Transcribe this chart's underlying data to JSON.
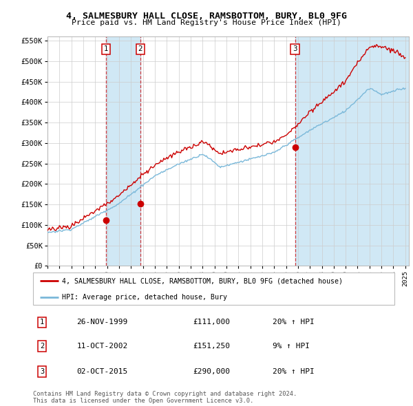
{
  "title": "4, SALMESBURY HALL CLOSE, RAMSBOTTOM, BURY, BL0 9FG",
  "subtitle": "Price paid vs. HM Land Registry's House Price Index (HPI)",
  "ylim": [
    0,
    560000
  ],
  "yticks": [
    0,
    50000,
    100000,
    150000,
    200000,
    250000,
    300000,
    350000,
    400000,
    450000,
    500000,
    550000
  ],
  "ytick_labels": [
    "£0",
    "£50K",
    "£100K",
    "£150K",
    "£200K",
    "£250K",
    "£300K",
    "£350K",
    "£400K",
    "£450K",
    "£500K",
    "£550K"
  ],
  "sale_dates": [
    1999.9,
    2002.78,
    2015.75
  ],
  "sale_prices": [
    111000,
    151250,
    290000
  ],
  "sale_labels": [
    "1",
    "2",
    "3"
  ],
  "hpi_color": "#7ab8d9",
  "price_color": "#cc0000",
  "shade_color": "#d0e8f5",
  "legend_price_label": "4, SALMESBURY HALL CLOSE, RAMSBOTTOM, BURY, BL0 9FG (detached house)",
  "legend_hpi_label": "HPI: Average price, detached house, Bury",
  "table_rows": [
    [
      "1",
      "26-NOV-1999",
      "£111,000",
      "20% ↑ HPI"
    ],
    [
      "2",
      "11-OCT-2002",
      "£151,250",
      "9% ↑ HPI"
    ],
    [
      "3",
      "02-OCT-2015",
      "£290,000",
      "20% ↑ HPI"
    ]
  ],
  "footer": "Contains HM Land Registry data © Crown copyright and database right 2024.\nThis data is licensed under the Open Government Licence v3.0.",
  "background_color": "#ffffff",
  "grid_color": "#cccccc",
  "xlim_start": 1995,
  "xlim_end": 2025.3
}
